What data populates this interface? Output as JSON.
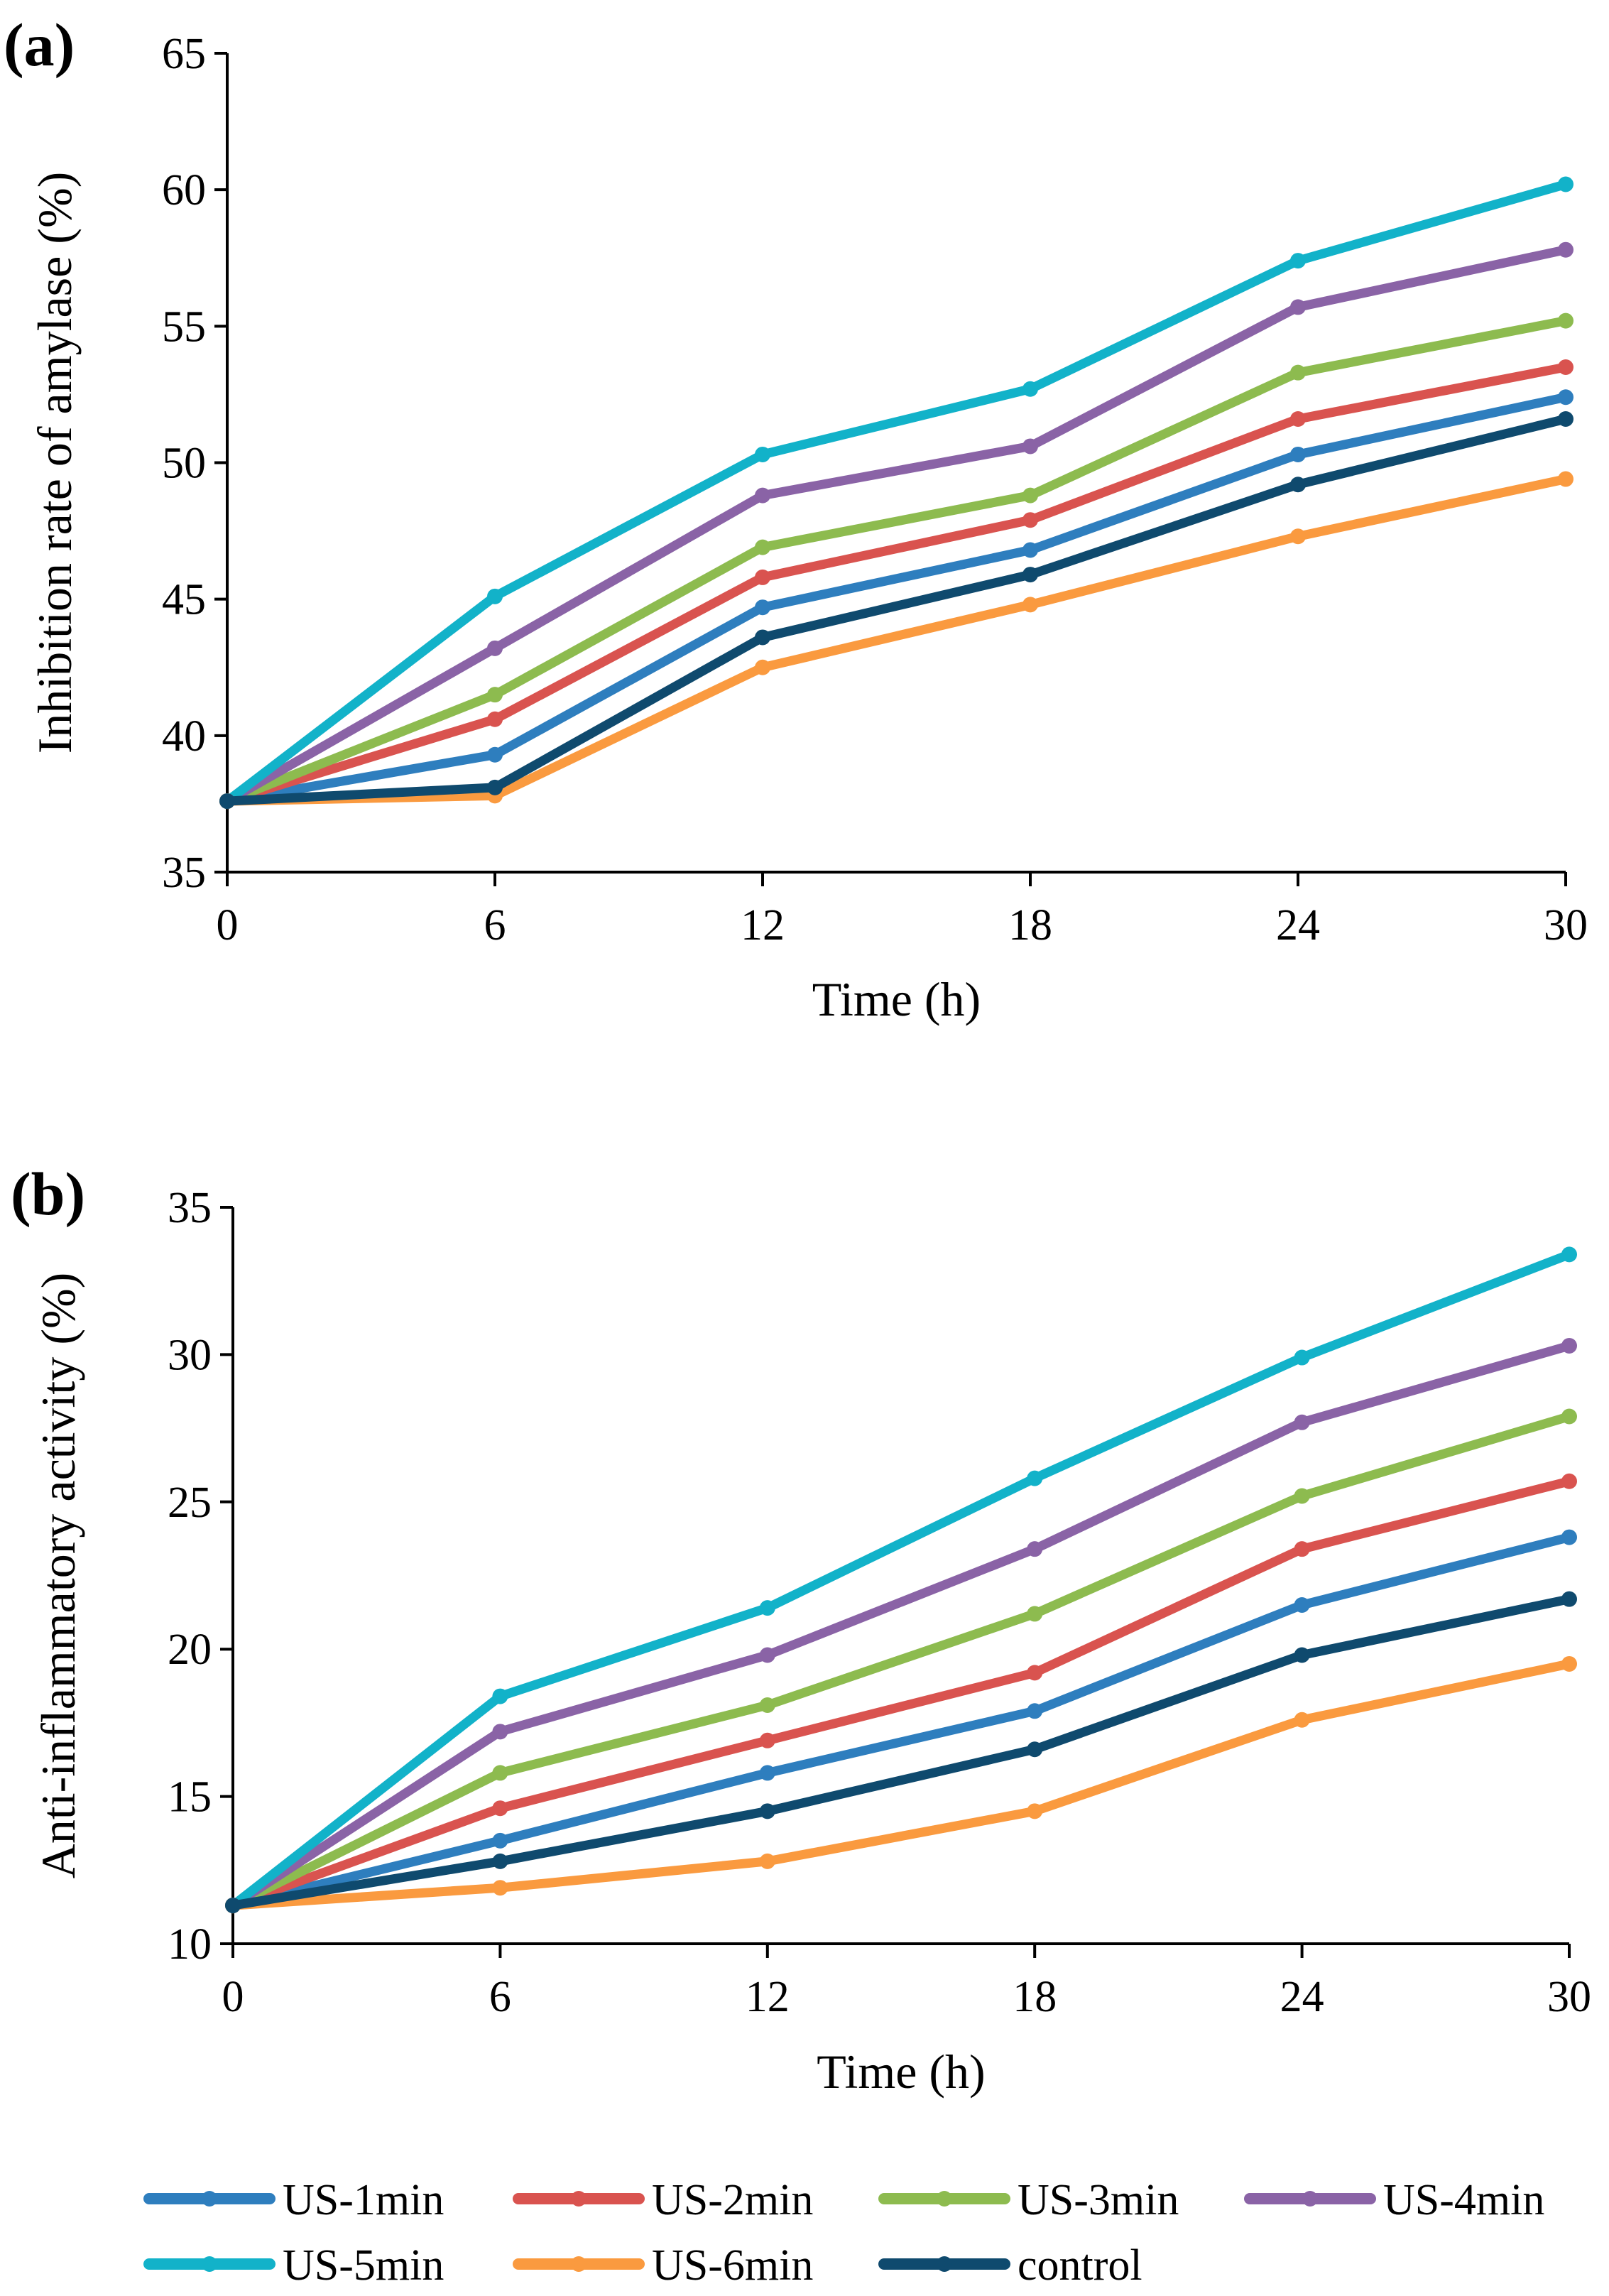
{
  "chart_data": [
    {
      "type": "line",
      "panel_label": "(a)",
      "title": "",
      "xlabel": "Time (h)",
      "ylabel": "Inhibition rate of amylase (%)",
      "x": [
        0,
        6,
        12,
        18,
        24,
        30
      ],
      "xlim": [
        0,
        30
      ],
      "ylim": [
        35,
        65
      ],
      "xticks": [
        "0",
        "6",
        "12",
        "18",
        "24",
        "30"
      ],
      "yticks": [
        "35",
        "40",
        "45",
        "50",
        "55",
        "60",
        "65"
      ],
      "grid": false,
      "series": [
        {
          "name": "US-1min",
          "color": "#2E7EBE",
          "values": [
            37.6,
            39.3,
            44.7,
            46.8,
            50.3,
            52.4
          ]
        },
        {
          "name": "US-2min",
          "color": "#D9534F",
          "values": [
            37.6,
            40.6,
            45.8,
            47.9,
            51.6,
            53.5
          ]
        },
        {
          "name": "US-3min",
          "color": "#8DBB4F",
          "values": [
            37.6,
            41.5,
            46.9,
            48.8,
            53.3,
            55.2
          ]
        },
        {
          "name": "US-4min",
          "color": "#8A63A6",
          "values": [
            37.6,
            43.2,
            48.8,
            50.6,
            55.7,
            57.8
          ]
        },
        {
          "name": "US-5min",
          "color": "#12B2C9",
          "values": [
            37.6,
            45.1,
            50.3,
            52.7,
            57.4,
            60.2
          ]
        },
        {
          "name": "US-6min",
          "color": "#FA9A3F",
          "values": [
            37.6,
            37.8,
            42.5,
            44.8,
            47.3,
            49.4
          ]
        },
        {
          "name": "control",
          "color": "#0F4A6E",
          "values": [
            37.6,
            38.1,
            43.6,
            45.9,
            49.2,
            51.6
          ]
        }
      ]
    },
    {
      "type": "line",
      "panel_label": "(b)",
      "title": "",
      "xlabel": "Time (h)",
      "ylabel": "Anti-inflammatory activity (%)",
      "x": [
        0,
        6,
        12,
        18,
        24,
        30
      ],
      "xlim": [
        0,
        30
      ],
      "ylim": [
        10,
        35
      ],
      "xticks": [
        "0",
        "6",
        "12",
        "18",
        "24",
        "30"
      ],
      "yticks": [
        "10",
        "15",
        "20",
        "25",
        "30",
        "35"
      ],
      "grid": false,
      "series": [
        {
          "name": "US-1min",
          "color": "#2E7EBE",
          "values": [
            11.3,
            13.5,
            15.8,
            17.9,
            21.5,
            23.8
          ]
        },
        {
          "name": "US-2min",
          "color": "#D9534F",
          "values": [
            11.3,
            14.6,
            16.9,
            19.2,
            23.4,
            25.7
          ]
        },
        {
          "name": "US-3min",
          "color": "#8DBB4F",
          "values": [
            11.3,
            15.8,
            18.1,
            21.2,
            25.2,
            27.9
          ]
        },
        {
          "name": "US-4min",
          "color": "#8A63A6",
          "values": [
            11.3,
            17.2,
            19.8,
            23.4,
            27.7,
            30.3
          ]
        },
        {
          "name": "US-5min",
          "color": "#12B2C9",
          "values": [
            11.3,
            18.4,
            21.4,
            25.8,
            29.9,
            33.4
          ]
        },
        {
          "name": "US-6min",
          "color": "#FA9A3F",
          "values": [
            11.3,
            11.9,
            12.8,
            14.5,
            17.6,
            19.5
          ]
        },
        {
          "name": "control",
          "color": "#0F4A6E",
          "values": [
            11.3,
            12.8,
            14.5,
            16.6,
            19.8,
            21.7
          ]
        }
      ]
    }
  ],
  "legend": {
    "placement": "bottom",
    "entries": [
      "US-1min",
      "US-2min",
      "US-3min",
      "US-4min",
      "US-5min",
      "US-6min",
      "control"
    ]
  }
}
